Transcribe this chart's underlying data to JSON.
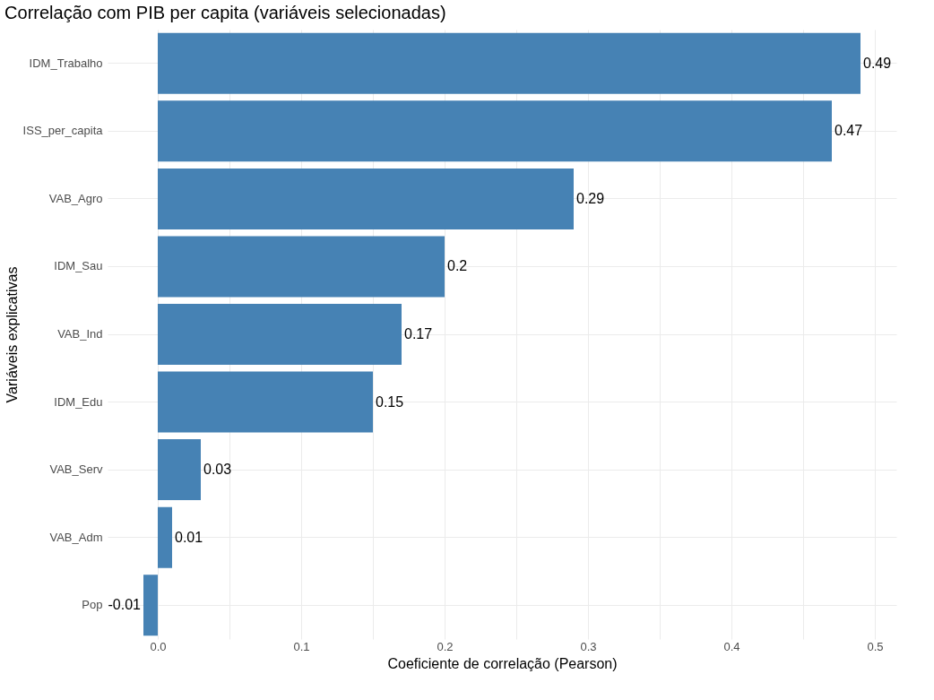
{
  "chart_data": {
    "type": "bar",
    "orientation": "horizontal",
    "title": "Correlação com PIB per capita (variáveis selecionadas)",
    "xlabel": "Coeficiente de correlação (Pearson)",
    "ylabel": "Variáveis explicativas",
    "categories": [
      "IDM_Trabalho",
      "ISS_per_capita",
      "VAB_Agro",
      "IDM_Sau",
      "VAB_Ind",
      "IDM_Edu",
      "VAB_Serv",
      "VAB_Adm",
      "Pop"
    ],
    "values": [
      0.49,
      0.47,
      0.29,
      0.2,
      0.17,
      0.15,
      0.03,
      0.01,
      -0.01
    ],
    "color": "#4682b4",
    "data_labels": true,
    "grid": true,
    "xlim": [
      -0.035,
      0.515
    ],
    "xticks": [
      {
        "value": 0,
        "label": "0.0"
      },
      {
        "value": 0.05,
        "label": null
      },
      {
        "value": 0.1,
        "label": "0.1"
      },
      {
        "value": 0.15,
        "label": null
      },
      {
        "value": 0.2,
        "label": "0.2"
      },
      {
        "value": 0.25,
        "label": null
      },
      {
        "value": 0.3,
        "label": "0.3"
      },
      {
        "value": 0.35,
        "label": null
      },
      {
        "value": 0.4,
        "label": "0.4"
      },
      {
        "value": 0.45,
        "label": null
      },
      {
        "value": 0.5,
        "label": "0.5"
      }
    ]
  }
}
